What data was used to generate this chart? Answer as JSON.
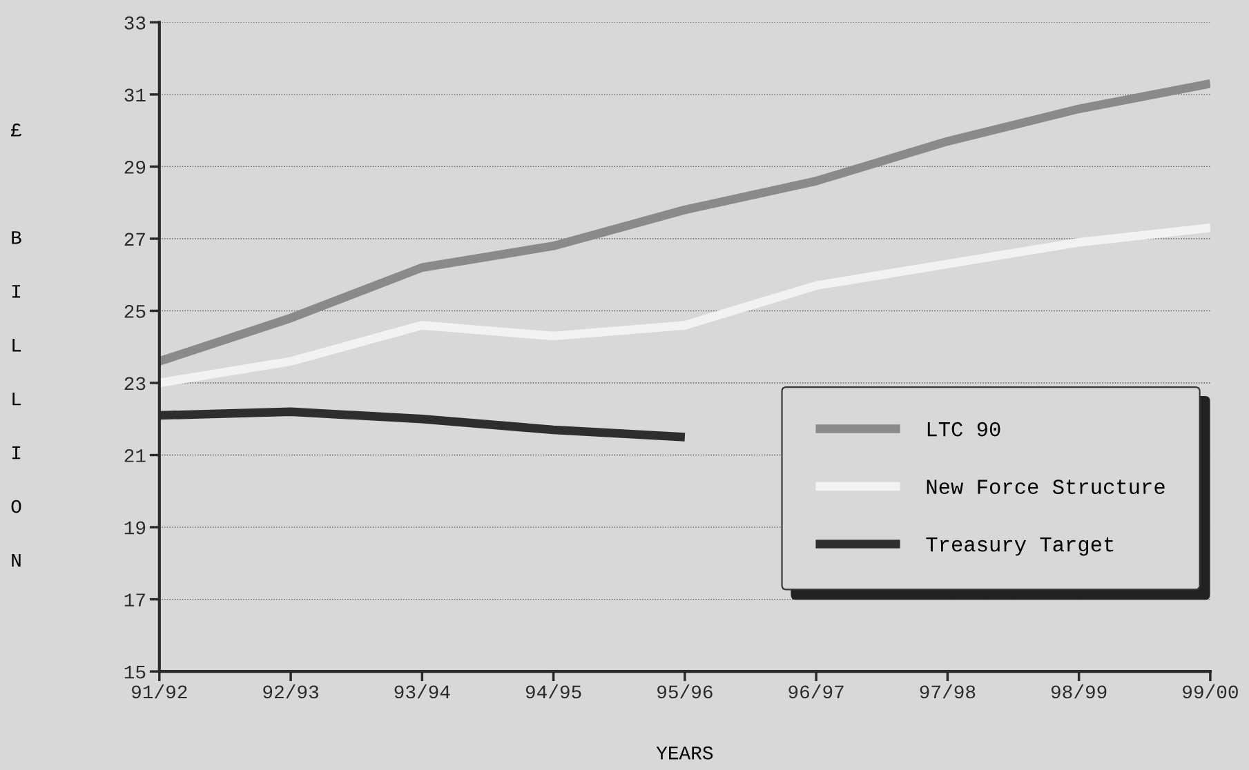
{
  "chart_data": {
    "type": "line",
    "xlabel": "YEARS",
    "ylabel": "£ BILLION",
    "categories": [
      "91/92",
      "92/93",
      "93/94",
      "94/95",
      "95/96",
      "96/97",
      "97/98",
      "98/99",
      "99/00"
    ],
    "series": [
      {
        "name": "LTC 90",
        "color": "#8a8a8a",
        "values": [
          23.6,
          24.8,
          26.2,
          26.8,
          27.8,
          28.6,
          29.7,
          30.6,
          31.3
        ]
      },
      {
        "name": "New Force Structure",
        "color": "#f2f2f2",
        "values": [
          23.0,
          23.6,
          24.6,
          24.3,
          24.6,
          25.7,
          26.3,
          26.9,
          27.3
        ]
      },
      {
        "name": "Treasury Target",
        "color": "#2e2e2e",
        "values": [
          22.1,
          22.2,
          22.0,
          21.7,
          21.5,
          null,
          null,
          null,
          null
        ]
      }
    ],
    "ylim": [
      15,
      33
    ],
    "yticks": [
      15,
      17,
      19,
      21,
      23,
      25,
      27,
      29,
      31,
      33
    ],
    "grid": "y",
    "legend": "bottom right",
    "marker": "none",
    "line_style": "solid"
  }
}
